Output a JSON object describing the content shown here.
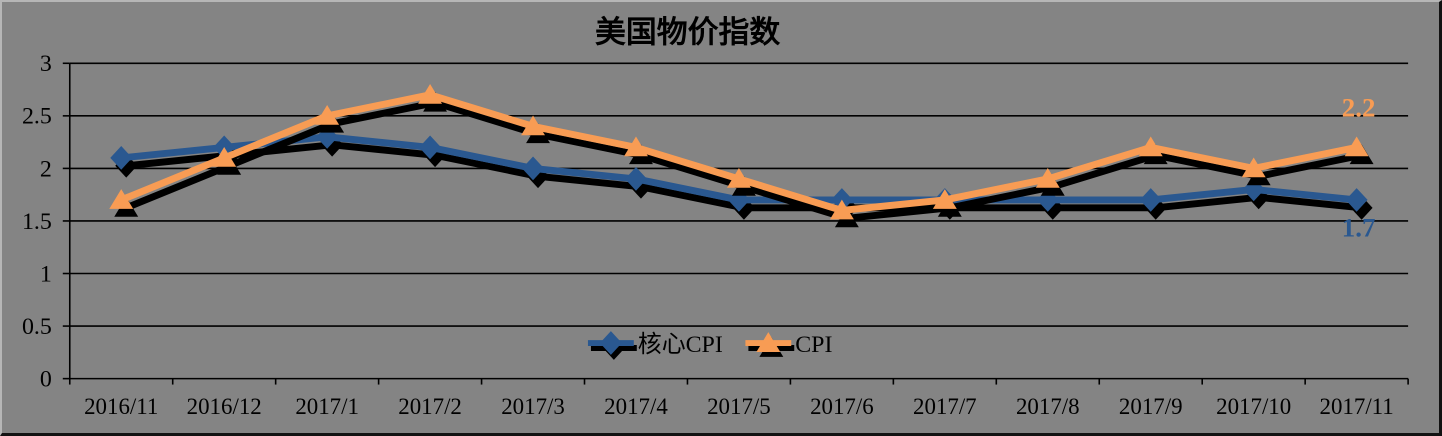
{
  "chart_data": {
    "type": "line",
    "title": "美国物价指数",
    "categories": [
      "2016/11",
      "2016/12",
      "2017/1",
      "2017/2",
      "2017/3",
      "2017/4",
      "2017/5",
      "2017/6",
      "2017/7",
      "2017/8",
      "2017/9",
      "2017/10",
      "2017/11"
    ],
    "series": [
      {
        "name": "核心CPI",
        "marker": "diamond",
        "color": "#2A5890",
        "values": [
          2.1,
          2.2,
          2.3,
          2.2,
          2.0,
          1.9,
          1.7,
          1.7,
          1.7,
          1.7,
          1.7,
          1.8,
          1.7
        ],
        "end_label": "1.7"
      },
      {
        "name": "CPI",
        "marker": "triangle",
        "color": "#F89C54",
        "values": [
          1.7,
          2.1,
          2.5,
          2.7,
          2.4,
          2.2,
          1.9,
          1.6,
          1.7,
          1.9,
          2.2,
          2.0,
          2.2
        ],
        "end_label": "2.2"
      }
    ],
    "ylim": [
      0,
      3
    ],
    "y_ticks": [
      {
        "label": "3",
        "value": 3
      },
      {
        "label": "2.5",
        "value": 2.5
      },
      {
        "label": "2",
        "value": 2
      },
      {
        "label": "1.5",
        "value": 1.5
      },
      {
        "label": "1",
        "value": 1
      },
      {
        "label": "0.5",
        "value": 0.5
      },
      {
        "label": "0",
        "value": 0
      }
    ],
    "grid": "horizontal",
    "legend_position": "bottom-center-inside",
    "plot_background": "#848484",
    "gridline_color": "#000000",
    "shadow": true
  }
}
